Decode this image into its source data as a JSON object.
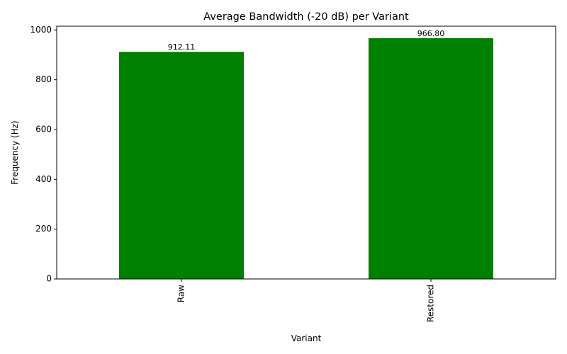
{
  "chart_data": {
    "type": "bar",
    "title": "Average Bandwidth (-20 dB) per Variant",
    "xlabel": "Variant",
    "ylabel": "Frequency (Hz)",
    "categories": [
      "Raw",
      "Restored"
    ],
    "values": [
      912.11,
      966.8
    ],
    "value_labels": [
      "912.11",
      "966.80"
    ],
    "ylim": [
      0,
      1015.14
    ],
    "yticks": [
      0,
      200,
      400,
      600,
      800,
      1000
    ],
    "ytick_labels": [
      "0",
      "200",
      "400",
      "600",
      "800",
      "1000"
    ],
    "bar_color": "#008000",
    "grid": false,
    "legend": "none"
  }
}
